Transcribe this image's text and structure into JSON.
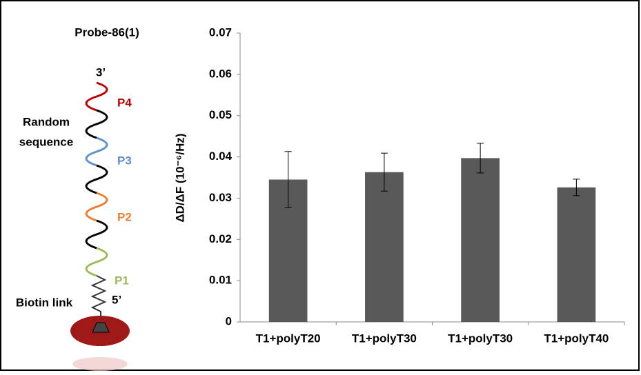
{
  "diagram": {
    "title": "Probe-86(1)",
    "three_prime": "3’",
    "five_prime": "5’",
    "p4": "P4",
    "p3": "P3",
    "p2": "P2",
    "p1": "P1",
    "random_line1": "Random",
    "random_line2": "sequence",
    "biotin": "Biotin link"
  },
  "chart_data": {
    "type": "bar",
    "y_label": "ΔD/ΔF (10⁻⁶/Hz)",
    "categories": [
      "T1+polyT20",
      "T1+polyT30",
      "T1+polyT30",
      "T1+polyT40"
    ],
    "values": [
      0.0345,
      0.0363,
      0.0397,
      0.0326
    ],
    "errors": [
      0.0068,
      0.0046,
      0.0036,
      0.002
    ],
    "color": "#595959",
    "ylim": [
      0,
      0.07
    ],
    "yticks": [
      0,
      0.01,
      0.02,
      0.03,
      0.04,
      0.05,
      0.06,
      0.07
    ],
    "grid": false
  }
}
